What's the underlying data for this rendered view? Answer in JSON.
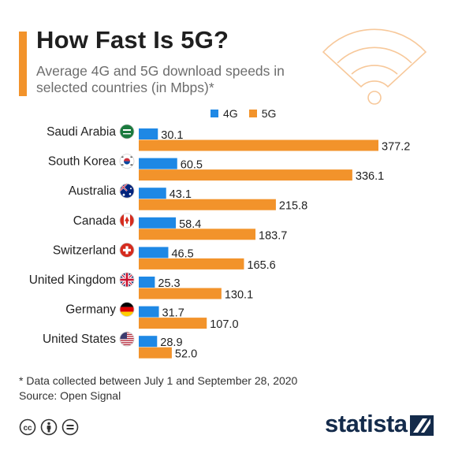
{
  "header": {
    "title": "How Fast Is 5G?",
    "subtitle": "Average 4G and 5G download speeds in selected countries (in Mbps)*"
  },
  "legend": {
    "items": [
      {
        "label": "4G",
        "color": "#1e88e5"
      },
      {
        "label": "5G",
        "color": "#f2932b"
      }
    ]
  },
  "chart_data": {
    "type": "bar",
    "orientation": "horizontal",
    "categories": [
      "Saudi Arabia",
      "South Korea",
      "Australia",
      "Canada",
      "Switzerland",
      "United Kingdom",
      "Germany",
      "United States"
    ],
    "series": [
      {
        "name": "4G",
        "color": "#1e88e5",
        "values": [
          30.1,
          60.5,
          43.1,
          58.4,
          46.5,
          25.3,
          31.7,
          28.9
        ]
      },
      {
        "name": "5G",
        "color": "#f2932b",
        "values": [
          377.2,
          336.1,
          215.8,
          183.7,
          165.6,
          130.1,
          107.0,
          52.0
        ]
      }
    ],
    "value_labels": {
      "4G": [
        "30.1",
        "60.5",
        "43.1",
        "58.4",
        "46.5",
        "25.3",
        "31.7",
        "28.9"
      ],
      "5G": [
        "377.2",
        "336.1",
        "215.8",
        "183.7",
        "165.6",
        "130.1",
        "107.0",
        "52.0"
      ]
    },
    "xlim": [
      0,
      377.2
    ],
    "flags": [
      "flag-saudi-arabia-icon",
      "flag-south-korea-icon",
      "flag-australia-icon",
      "flag-canada-icon",
      "flag-switzerland-icon",
      "flag-united-kingdom-icon",
      "flag-germany-icon",
      "flag-united-states-icon"
    ],
    "grid": false
  },
  "footer": {
    "note": "* Data collected between July 1 and September 28, 2020",
    "source": "Source: Open Signal",
    "brand": "statista",
    "license_icons": [
      "creative-commons-icon",
      "attribution-icon",
      "no-derivatives-icon"
    ]
  }
}
